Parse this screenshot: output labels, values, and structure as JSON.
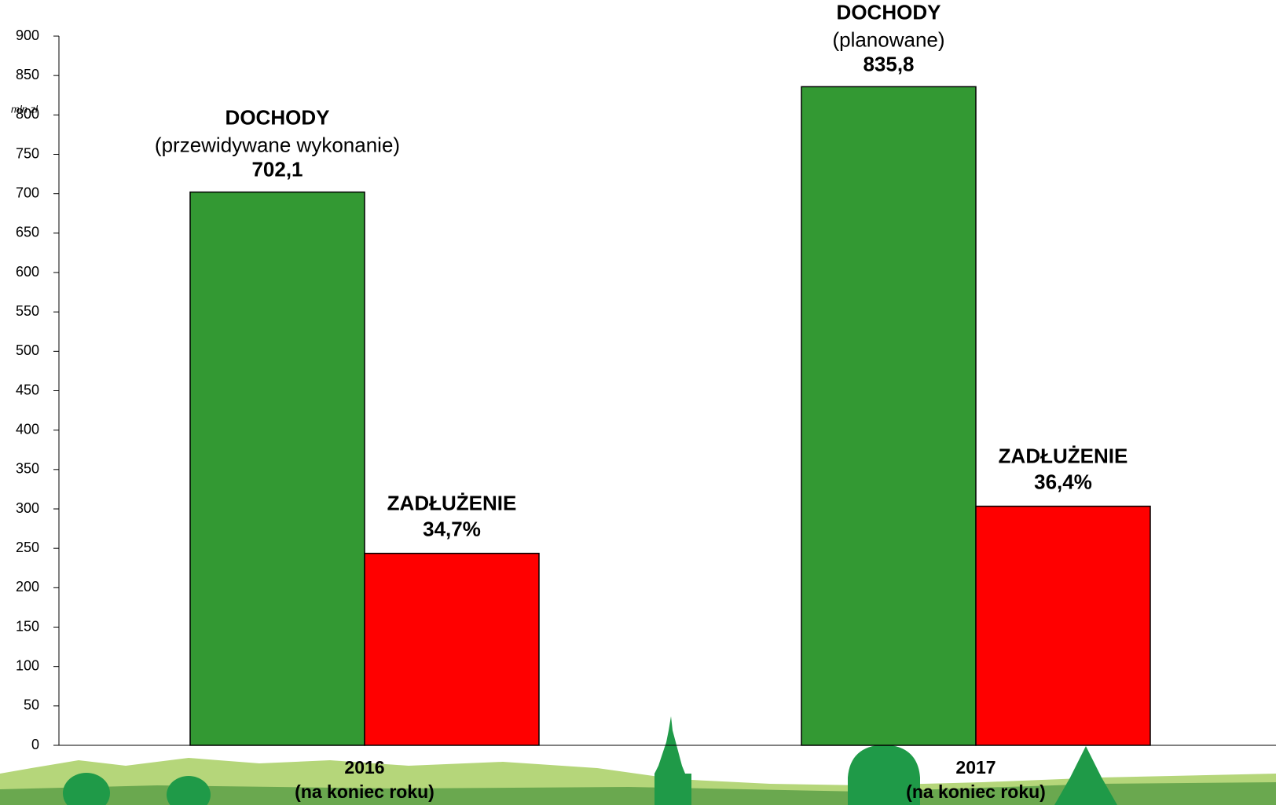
{
  "chart_data": {
    "type": "bar",
    "y_label": "mln zł",
    "categories": [
      "2016",
      "2017"
    ],
    "category_notes": [
      "(na koniec roku)",
      "(na koniec roku)"
    ],
    "series": [
      {
        "name": "DOCHODY",
        "color": "#339933",
        "values": [
          702.1,
          835.8
        ],
        "value_labels": [
          "702,1",
          "835,8"
        ],
        "notes": [
          "(przewidywane wykonanie)",
          "(planowane)"
        ]
      },
      {
        "name": "ZADŁUŻENIE",
        "color": "#ff0000",
        "values": [
          243.6,
          303.4
        ],
        "annotations": [
          "34,7%",
          "36,4%"
        ]
      }
    ],
    "ylim": [
      0,
      900
    ],
    "yticks": [
      0,
      50,
      100,
      150,
      200,
      250,
      300,
      350,
      400,
      450,
      500,
      550,
      600,
      650,
      700,
      750,
      800,
      850,
      900
    ],
    "grid": false
  }
}
